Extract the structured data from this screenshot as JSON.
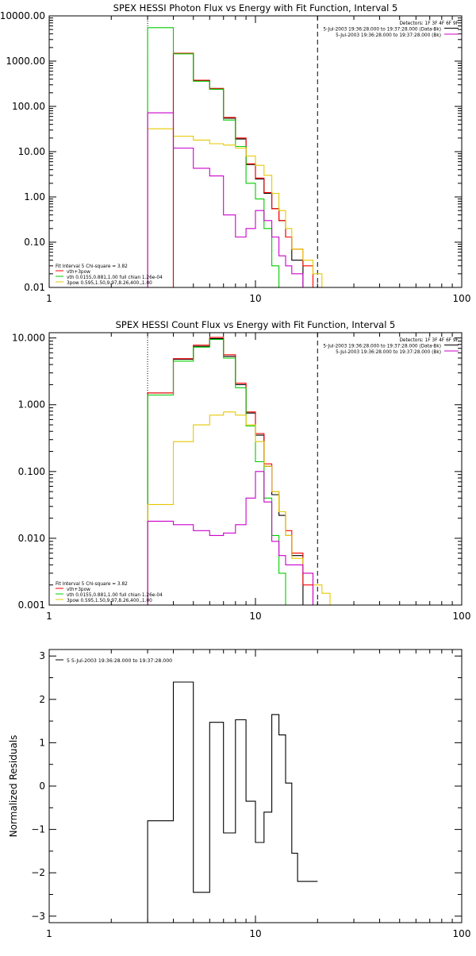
{
  "chart_data": [
    {
      "type": "line",
      "title": "SPEX HESSI Photon Flux vs Energy with Fit Function, Interval 5",
      "xscale": "log",
      "yscale": "log",
      "xlim": [
        1,
        100
      ],
      "ylim": [
        0.01,
        10000
      ],
      "xtick_labels": [
        {
          "v": 1,
          "label": "1"
        },
        {
          "v": 10,
          "label": "10"
        },
        {
          "v": 100,
          "label": "100"
        }
      ],
      "ytick_labels": [
        {
          "v": 0.01,
          "label": "0.01"
        },
        {
          "v": 0.1,
          "label": "0.10"
        },
        {
          "v": 1,
          "label": "1.00"
        },
        {
          "v": 10,
          "label": "10.00"
        },
        {
          "v": 100,
          "label": "100.00"
        },
        {
          "v": 1000,
          "label": "1000.00"
        },
        {
          "v": 10000,
          "label": "10000.00"
        }
      ],
      "legend": {
        "position": "top-right",
        "lines": [
          {
            "text": "Detectors: 1F 3F 4F 6F 9F",
            "color": ""
          },
          {
            "text": "5-Jul-2003 19:36:28.000 to 19:37:28.000 (Data-Bk)",
            "color": "#000000"
          },
          {
            "text": "5-Jul-2003 19:36:28.000 to 19:37:28.000 (Bk)",
            "color": "#cc00cc"
          }
        ]
      },
      "fit_legend": {
        "position": "bottom-left",
        "lines": [
          {
            "text": "Fit Interval 5   Chi-square = 3.82",
            "color": ""
          },
          {
            "text": "vth+3pow",
            "color": "#ff0000"
          },
          {
            "text": "vth 0.0155,0.881,1.00  full chian 1.26e-04",
            "color": "#00cc00"
          },
          {
            "text": "3pow 0.595,1.50,9.97,8.26,400.,1.00",
            "color": "#e6c800"
          }
        ]
      },
      "vlines": [
        {
          "x": 3,
          "style": "dotted"
        },
        {
          "x": 20,
          "style": "dashed"
        }
      ],
      "series": [
        {
          "color": "#000000",
          "edges": [
            3,
            4,
            5,
            6,
            7,
            8,
            9,
            10,
            11,
            12,
            13,
            14,
            15,
            17,
            19,
            21
          ],
          "values": [
            0.01,
            1500,
            370,
            240,
            55,
            19,
            5.2,
            2.5,
            1.2,
            0.55,
            0.3,
            0.13,
            0.04,
            0.01,
            0.01
          ]
        },
        {
          "color": "#ff0000",
          "edges": [
            3,
            4,
            5,
            6,
            7,
            8,
            9,
            10,
            11,
            12,
            13,
            14,
            15,
            17,
            19,
            21
          ],
          "values": [
            0.01,
            1500,
            380,
            250,
            57,
            20,
            5.4,
            2.6,
            1.25,
            0.55,
            0.3,
            0.13,
            0.07,
            0.03,
            0.01
          ]
        },
        {
          "color": "#00cc00",
          "edges": [
            3,
            4,
            5,
            6,
            7,
            8,
            9,
            10,
            11,
            12,
            13,
            14
          ],
          "values": [
            5500,
            1450,
            360,
            240,
            50,
            13,
            2,
            0.9,
            0.2,
            0.03,
            0.01
          ]
        },
        {
          "color": "#e6c800",
          "edges": [
            3,
            4,
            5,
            6,
            7,
            8,
            9,
            10,
            11,
            12,
            13,
            14,
            15,
            17,
            19,
            21,
            23,
            25,
            27
          ],
          "values": [
            32,
            22,
            18,
            15,
            14,
            12,
            8,
            5,
            3,
            1.2,
            0.5,
            0.2,
            0.07,
            0.04,
            0.02,
            0.01,
            0.01,
            0.01
          ]
        },
        {
          "color": "#cc00cc",
          "edges": [
            3,
            4,
            5,
            6,
            7,
            8,
            9,
            10,
            11,
            12,
            13,
            14,
            15,
            17,
            19,
            21,
            23,
            25
          ],
          "values": [
            72,
            12,
            4.3,
            2.9,
            0.4,
            0.13,
            0.2,
            0.5,
            0.3,
            0.13,
            0.05,
            0.03,
            0.02,
            0.01,
            0.01,
            0.01,
            0.01
          ]
        }
      ]
    },
    {
      "type": "line",
      "title": "SPEX HESSI Count Flux vs Energy with Fit Function, Interval 5",
      "xscale": "log",
      "yscale": "log",
      "xlim": [
        1,
        100
      ],
      "ylim": [
        0.001,
        12
      ],
      "xtick_labels": [
        {
          "v": 1,
          "label": "1"
        },
        {
          "v": 10,
          "label": "10"
        },
        {
          "v": 100,
          "label": "100"
        }
      ],
      "ytick_labels": [
        {
          "v": 0.001,
          "label": "0.001"
        },
        {
          "v": 0.01,
          "label": "0.010"
        },
        {
          "v": 0.1,
          "label": "0.100"
        },
        {
          "v": 1,
          "label": "1.000"
        },
        {
          "v": 10,
          "label": "10.000"
        }
      ],
      "legend": {
        "position": "top-right",
        "lines": [
          {
            "text": "Detectors: 1F 3F 4F 6F 9F",
            "color": ""
          },
          {
            "text": "5-Jul-2003 19:36:28.000 to 19:37:28.000 (Data-Bk)",
            "color": "#000000"
          },
          {
            "text": "5-Jul-2003 19:36:28.000 to 19:37:28.000 (Bk)",
            "color": "#cc00cc"
          }
        ]
      },
      "fit_legend": {
        "position": "bottom-left",
        "lines": [
          {
            "text": "Fit Interval 5   Chi-square = 3.82",
            "color": ""
          },
          {
            "text": "vth+3pow",
            "color": "#ff0000"
          },
          {
            "text": "vth 0.0155,0.881,1.00  full chian 1.26e-04",
            "color": "#00cc00"
          },
          {
            "text": "3pow 0.595,1.50,9.97,8.26,400.,1.00",
            "color": "#e6c800"
          }
        ]
      },
      "vlines": [
        {
          "x": 3,
          "style": "dotted"
        },
        {
          "x": 20,
          "style": "dashed"
        }
      ],
      "series": [
        {
          "color": "#000000",
          "edges": [
            3,
            4,
            5,
            6,
            7,
            8,
            9,
            10,
            11,
            12,
            13,
            14,
            15,
            17,
            19,
            21
          ],
          "values": [
            1.5,
            4.8,
            7.5,
            9.8,
            5.3,
            2.0,
            0.75,
            0.35,
            0.12,
            0.045,
            0.022,
            0.011,
            0.0055,
            0.001,
            0.001
          ]
        },
        {
          "color": "#ff0000",
          "edges": [
            3,
            4,
            5,
            6,
            7,
            8,
            9,
            10,
            11,
            12,
            13,
            14,
            15,
            17,
            19,
            21
          ],
          "values": [
            1.5,
            4.9,
            7.8,
            10.2,
            5.6,
            2.1,
            0.78,
            0.37,
            0.13,
            0.05,
            0.025,
            0.013,
            0.006,
            0.002,
            0.001
          ]
        },
        {
          "color": "#00cc00",
          "edges": [
            3,
            4,
            5,
            6,
            7,
            8,
            9,
            10,
            11,
            12,
            13,
            14,
            15
          ],
          "values": [
            1.4,
            4.5,
            7.3,
            9.5,
            5.0,
            1.8,
            0.48,
            0.14,
            0.04,
            0.011,
            0.003,
            0.001
          ]
        },
        {
          "color": "#e6c800",
          "edges": [
            3,
            4,
            5,
            6,
            7,
            8,
            9,
            10,
            11,
            12,
            13,
            14,
            15,
            17,
            19,
            21,
            23,
            25,
            27
          ],
          "values": [
            0.032,
            0.28,
            0.5,
            0.7,
            0.78,
            0.7,
            0.5,
            0.28,
            0.12,
            0.05,
            0.025,
            0.011,
            0.005,
            0.003,
            0.002,
            0.0015,
            0.001,
            0.001
          ]
        },
        {
          "color": "#cc00cc",
          "edges": [
            3,
            4,
            5,
            6,
            7,
            8,
            9,
            10,
            11,
            12,
            13,
            14,
            15,
            17,
            19,
            21
          ],
          "values": [
            0.018,
            0.016,
            0.013,
            0.011,
            0.012,
            0.016,
            0.04,
            0.1,
            0.035,
            0.009,
            0.0055,
            0.004,
            0.004,
            0.003,
            0.001
          ]
        }
      ]
    },
    {
      "type": "line",
      "title": "",
      "xscale": "log",
      "yscale": "linear",
      "xlim": [
        1,
        100
      ],
      "ylim": [
        -3.15,
        3.15
      ],
      "ylabel": "Normalized Residuals",
      "xtick_labels": [
        {
          "v": 1,
          "label": "1"
        },
        {
          "v": 10,
          "label": "10"
        },
        {
          "v": 100,
          "label": "100"
        }
      ],
      "ytick_labels": [
        {
          "v": -3,
          "label": "−3"
        },
        {
          "v": -2,
          "label": "−2"
        },
        {
          "v": -1,
          "label": "−1"
        },
        {
          "v": 0,
          "label": "0"
        },
        {
          "v": 1,
          "label": "1"
        },
        {
          "v": 2,
          "label": "2"
        },
        {
          "v": 3,
          "label": "3"
        }
      ],
      "legend": {
        "position": "top-left",
        "lines": [
          {
            "text": "5  5-Jul-2003 19:36:28.000 to 19:37:28.000",
            "color": "#000000"
          }
        ]
      },
      "series": [
        {
          "color": "#000000",
          "edges": [
            3,
            4,
            5,
            6,
            7,
            8,
            9,
            10,
            11,
            12,
            13,
            14,
            15,
            16,
            17,
            18,
            19,
            20
          ],
          "values": [
            -0.8,
            2.4,
            -2.45,
            1.47,
            -1.08,
            1.53,
            -0.35,
            -1.3,
            -0.6,
            1.65,
            1.18,
            0.07,
            -1.55,
            -2.2,
            -2.2,
            -2.2,
            -2.2
          ]
        }
      ]
    }
  ]
}
